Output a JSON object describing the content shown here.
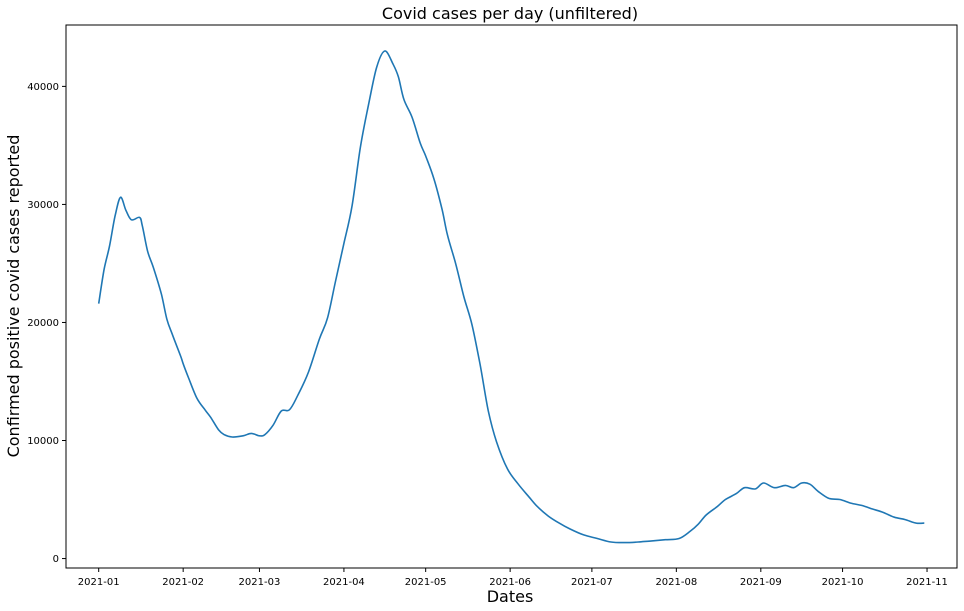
{
  "chart_data": {
    "type": "line",
    "title": "Covid cases per day (unfiltered)",
    "xlabel": "Dates",
    "ylabel": "Confirmed positive covid cases reported",
    "x_ticks": [
      "2021-01",
      "2021-02",
      "2021-03",
      "2021-04",
      "2021-05",
      "2021-06",
      "2021-07",
      "2021-08",
      "2021-09",
      "2021-10",
      "2021-11"
    ],
    "y_ticks": [
      0,
      10000,
      20000,
      30000,
      40000
    ],
    "xlim": [
      "2020-12-20",
      "2021-11-12"
    ],
    "ylim": [
      -800,
      45200
    ],
    "grid": false,
    "line_color": "#1f77b4",
    "series": [
      {
        "x": [
          "2021-01-01",
          "2021-01-03",
          "2021-01-05",
          "2021-01-07",
          "2021-01-09",
          "2021-01-11",
          "2021-01-13",
          "2021-01-16",
          "2021-01-17",
          "2021-01-19",
          "2021-01-21",
          "2021-01-24",
          "2021-01-26",
          "2021-01-28",
          "2021-01-31",
          "2021-02-01",
          "2021-02-03",
          "2021-02-06",
          "2021-02-09",
          "2021-02-11",
          "2021-02-14",
          "2021-02-16",
          "2021-02-19",
          "2021-02-23",
          "2021-02-26",
          "2021-03-01",
          "2021-03-03",
          "2021-03-06",
          "2021-03-09",
          "2021-03-12",
          "2021-03-15",
          "2021-03-19",
          "2021-03-23",
          "2021-03-26",
          "2021-03-29",
          "2021-04-01",
          "2021-04-04",
          "2021-04-07",
          "2021-04-10",
          "2021-04-13",
          "2021-04-16",
          "2021-04-19",
          "2021-04-21",
          "2021-04-23",
          "2021-04-26",
          "2021-04-29",
          "2021-05-01",
          "2021-05-04",
          "2021-05-07",
          "2021-05-09",
          "2021-05-12",
          "2021-05-15",
          "2021-05-18",
          "2021-05-21",
          "2021-05-24",
          "2021-05-27",
          "2021-05-31",
          "2021-06-04",
          "2021-06-08",
          "2021-06-11",
          "2021-06-15",
          "2021-06-19",
          "2021-06-23",
          "2021-06-28",
          "2021-07-03",
          "2021-07-08",
          "2021-07-13",
          "2021-07-18",
          "2021-07-23",
          "2021-07-28",
          "2021-08-02",
          "2021-08-06",
          "2021-08-09",
          "2021-08-12",
          "2021-08-16",
          "2021-08-19",
          "2021-08-23",
          "2021-08-26",
          "2021-08-30",
          "2021-09-02",
          "2021-09-06",
          "2021-09-10",
          "2021-09-13",
          "2021-09-16",
          "2021-09-19",
          "2021-09-22",
          "2021-09-26",
          "2021-09-30",
          "2021-10-04",
          "2021-10-08",
          "2021-10-12",
          "2021-10-16",
          "2021-10-20",
          "2021-10-24",
          "2021-10-28",
          "2021-10-31"
        ],
        "y": [
          21600,
          24500,
          26500,
          29000,
          30600,
          29500,
          28700,
          28900,
          28200,
          26000,
          24700,
          22400,
          20300,
          19000,
          17200,
          16500,
          15300,
          13600,
          12600,
          12000,
          10900,
          10500,
          10300,
          10400,
          10600,
          10400,
          10500,
          11300,
          12500,
          12600,
          13800,
          15800,
          18600,
          20400,
          23600,
          26700,
          29900,
          34800,
          38400,
          41600,
          43000,
          41900,
          40800,
          38900,
          37400,
          35200,
          34100,
          32200,
          29600,
          27400,
          25000,
          22200,
          19800,
          16400,
          12500,
          9900,
          7600,
          6300,
          5200,
          4400,
          3600,
          3000,
          2500,
          2000,
          1700,
          1400,
          1350,
          1400,
          1500,
          1600,
          1700,
          2300,
          2900,
          3700,
          4400,
          5000,
          5500,
          6000,
          5900,
          6400,
          6000,
          6200,
          6000,
          6400,
          6300,
          5700,
          5100,
          5000,
          4700,
          4500,
          4200,
          3900,
          3500,
          3300,
          3000,
          3000
        ]
      }
    ]
  }
}
